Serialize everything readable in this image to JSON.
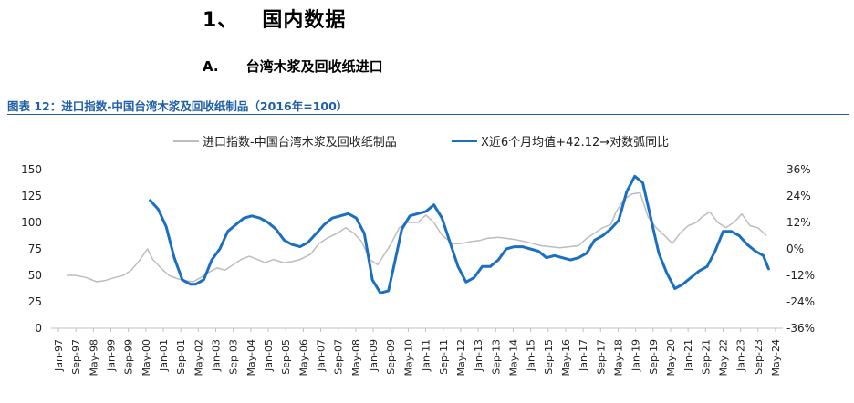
{
  "page": {
    "section_number": "1、",
    "section_title": "国内数据",
    "sub_number": "A.",
    "sub_title": "台湾木浆及回收纸进口",
    "figure_caption": "图表 12：进口指数-中国台湾木浆及回收纸制品（2016年=100）"
  },
  "colors": {
    "gray_series": "#bdbdbd",
    "blue_series": "#1b6fc2",
    "caption": "#1f5fa8",
    "axis": "#bfbfbf"
  },
  "chart_data": {
    "type": "line",
    "title": "",
    "legend": {
      "position": "top"
    },
    "x_tick_labels": [
      "Jan-97",
      "Sep-97",
      "May-98",
      "Jan-99",
      "Sep-99",
      "May-00",
      "Jan-01",
      "Sep-01",
      "May-02",
      "Jan-03",
      "Sep-03",
      "May-04",
      "Jan-05",
      "Sep-05",
      "May-06",
      "Jan-07",
      "Sep-07",
      "May-08",
      "Jan-09",
      "Sep-09",
      "May-10",
      "Jan-11",
      "Sep-11",
      "May-12",
      "Jan-13",
      "Sep-13",
      "May-14",
      "Jan-15",
      "Sep-15",
      "May-16",
      "Jan-17",
      "Sep-17",
      "May-18",
      "Jan-19",
      "Sep-19",
      "May-20",
      "Jan-21",
      "Sep-21",
      "May-22",
      "Jan-23",
      "Sep-23",
      "May-24"
    ],
    "x_range": [
      1997.0,
      2024.33
    ],
    "y_left": {
      "ticks": [
        "0",
        "25",
        "50",
        "75",
        "100",
        "125",
        "150"
      ],
      "min": 0,
      "max": 150
    },
    "y_right": {
      "ticks": [
        "-36%",
        "-24%",
        "-12%",
        "0%",
        "12%",
        "24%",
        "36%"
      ],
      "min": -36,
      "max": 36
    },
    "series": [
      {
        "name": "进口指数-中国台湾木浆及回收纸制品",
        "axis": "left",
        "color": "#bdbdbd",
        "x": [
          1997.6,
          1997.9,
          1998.3,
          1998.7,
          1999.0,
          1999.4,
          1999.7,
          2000.0,
          2000.3,
          2000.6,
          2000.8,
          2001.1,
          2001.4,
          2001.7,
          2002.0,
          2002.3,
          2002.6,
          2002.9,
          2003.2,
          2003.5,
          2003.8,
          2004.1,
          2004.4,
          2004.7,
          2005.0,
          2005.3,
          2005.7,
          2006.0,
          2006.3,
          2006.7,
          2007.0,
          2007.3,
          2007.7,
          2008.0,
          2008.3,
          2008.6,
          2008.9,
          2009.2,
          2009.4,
          2009.7,
          2010.0,
          2010.3,
          2010.7,
          2011.0,
          2011.3,
          2011.6,
          2012.0,
          2012.3,
          2012.7,
          2013.0,
          2013.3,
          2013.7,
          2014.0,
          2014.3,
          2014.7,
          2015.0,
          2015.3,
          2015.7,
          2016.0,
          2016.3,
          2016.7,
          2017.0,
          2017.3,
          2017.6,
          2017.9,
          2018.1,
          2018.4,
          2018.7,
          2019.0,
          2019.3,
          2019.6,
          2019.9,
          2020.2,
          2020.5,
          2020.8,
          2021.1,
          2021.3,
          2021.6,
          2021.9,
          2022.2,
          2022.5,
          2022.8,
          2023.1,
          2023.4,
          2023.7
        ],
        "values": [
          50,
          50,
          48,
          44,
          45,
          48,
          50,
          55,
          64,
          75,
          65,
          57,
          50,
          47,
          45,
          44,
          48,
          53,
          57,
          55,
          60,
          65,
          68,
          65,
          62,
          65,
          62,
          63,
          65,
          70,
          80,
          85,
          90,
          95,
          90,
          82,
          65,
          60,
          68,
          80,
          95,
          100,
          100,
          107,
          100,
          88,
          80,
          80,
          82,
          83,
          85,
          86,
          85,
          84,
          82,
          80,
          78,
          77,
          76,
          77,
          78,
          85,
          90,
          95,
          98,
          110,
          122,
          127,
          128,
          105,
          95,
          88,
          80,
          90,
          97,
          100,
          105,
          110,
          100,
          95,
          100,
          108,
          97,
          95,
          88
        ]
      },
      {
        "name": "X近6个月均值+42.12→对数弧同比",
        "axis": "right",
        "color": "#1b6fc2",
        "x": [
          2000.7,
          2001.0,
          2001.3,
          2001.6,
          2001.9,
          2002.2,
          2002.4,
          2002.7,
          2003.0,
          2003.3,
          2003.6,
          2003.9,
          2004.2,
          2004.5,
          2004.8,
          2005.1,
          2005.4,
          2005.7,
          2006.0,
          2006.3,
          2006.6,
          2006.9,
          2007.2,
          2007.5,
          2007.8,
          2008.1,
          2008.4,
          2008.7,
          2009.0,
          2009.3,
          2009.6,
          2009.8,
          2010.1,
          2010.4,
          2010.7,
          2011.0,
          2011.3,
          2011.6,
          2011.9,
          2012.2,
          2012.5,
          2012.8,
          2013.1,
          2013.4,
          2013.7,
          2014.0,
          2014.3,
          2014.6,
          2014.9,
          2015.2,
          2015.5,
          2015.8,
          2016.1,
          2016.4,
          2016.7,
          2017.0,
          2017.3,
          2017.6,
          2017.9,
          2018.2,
          2018.5,
          2018.8,
          2019.1,
          2019.4,
          2019.7,
          2020.0,
          2020.3,
          2020.6,
          2020.9,
          2021.2,
          2021.5,
          2021.8,
          2022.1,
          2022.4,
          2022.7,
          2023.0,
          2023.3,
          2023.6,
          2023.8
        ],
        "values": [
          22,
          18,
          10,
          -4,
          -14,
          -16,
          -16,
          -14,
          -5,
          0,
          8,
          11,
          14,
          15,
          14,
          12,
          9,
          4,
          2,
          1,
          3,
          7,
          11,
          14,
          15,
          16,
          14,
          7,
          -14,
          -20,
          -19,
          -8,
          9,
          15,
          16,
          17,
          20,
          14,
          3,
          -8,
          -15,
          -13,
          -8,
          -8,
          -5,
          0,
          1,
          1,
          0,
          -1,
          -4,
          -3,
          -4,
          -5,
          -4,
          -2,
          4,
          6,
          9,
          13,
          26,
          33,
          30,
          14,
          -2,
          -11,
          -18,
          -16,
          -13,
          -10,
          -8,
          -1,
          8,
          8,
          6,
          2,
          -1,
          -3,
          -9
        ]
      }
    ]
  }
}
